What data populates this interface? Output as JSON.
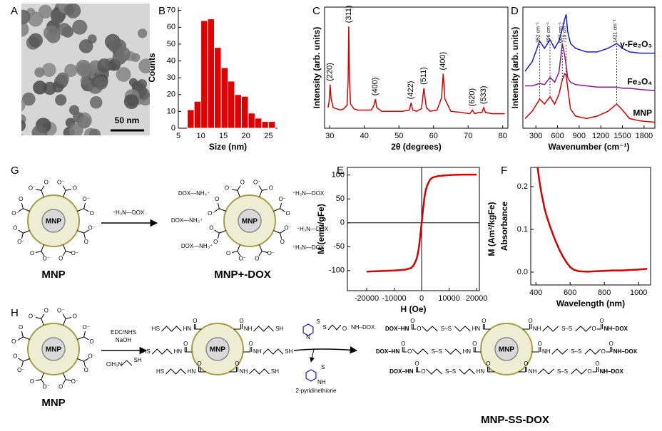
{
  "panel_labels": [
    "A",
    "B",
    "C",
    "D",
    "E",
    "F",
    "G",
    "H"
  ],
  "panel_a": {
    "scale_bar": "50 nm"
  },
  "chart_data": [
    {
      "type": "histogram",
      "xlabel": "Size (nm)",
      "ylabel": "Counts",
      "color": "#e00000",
      "bins": [
        7,
        8.5,
        10,
        11.5,
        13,
        14.5,
        16,
        17.5,
        19,
        20.5,
        22,
        23.5,
        25,
        26.5
      ],
      "values": [
        11,
        16,
        64,
        65,
        48,
        36,
        28,
        20,
        19,
        9,
        6,
        4,
        4
      ],
      "xlim": [
        5,
        27
      ],
      "ylim": [
        0,
        72
      ],
      "xticks": [
        5,
        10,
        15,
        20,
        25
      ],
      "yticks": [
        0,
        10,
        20,
        30,
        40,
        50,
        60,
        70
      ]
    },
    {
      "type": "line",
      "xlabel": "2θ (degrees)",
      "ylabel": "Intensity (arb. units)",
      "x": [
        29.5,
        29.8,
        30.1,
        30.4,
        31,
        32,
        33,
        34,
        35,
        35.3,
        35.5,
        35.7,
        36,
        37,
        38,
        40,
        42,
        42.8,
        43.2,
        43.6,
        45,
        48,
        51,
        53,
        53.5,
        54,
        55,
        56.5,
        57.2,
        57.9,
        59,
        61,
        62.3,
        62.8,
        63.3,
        65,
        68,
        70.5,
        71.2,
        71.9,
        73,
        74,
        74.5,
        75,
        77,
        80.5
      ],
      "series": [
        {
          "color": "#d40000",
          "values": [
            17,
            22,
            36,
            24,
            17,
            16,
            15,
            16,
            19,
            40,
            84,
            40,
            20,
            16,
            15,
            15,
            15,
            19,
            24,
            17,
            14,
            14,
            14,
            15,
            21,
            15,
            14,
            16,
            33,
            17,
            14,
            15,
            25,
            45,
            24,
            14,
            13,
            12,
            15,
            12,
            13,
            13,
            17,
            13,
            12,
            12
          ]
        }
      ],
      "peak_labels": [
        "(220)",
        "(311)",
        "(400)",
        "(422)",
        "(511)",
        "(400)",
        "(620)",
        "(533)"
      ],
      "peak_positions": [
        30.1,
        35.5,
        43.2,
        53.5,
        57.2,
        62.8,
        71.2,
        74.5
      ],
      "xlim": [
        28.5,
        81.5
      ],
      "ylim": [
        0,
        100
      ],
      "xticks": [
        30,
        40,
        50,
        60,
        70,
        80
      ]
    },
    {
      "type": "line",
      "xlabel": "Wavenumber (cm⁻¹)",
      "ylabel": "Intensity (arb. units)",
      "x": [
        150,
        250,
        352,
        420,
        496,
        560,
        620,
        667,
        700,
        719,
        740,
        780,
        850,
        1000,
        1150,
        1300,
        1421,
        1500,
        1600,
        1750,
        1950
      ],
      "series": [
        {
          "name": "γ-Fe₂O₃",
          "color": "#1a1ad0",
          "values": [
            47,
            55,
            72,
            66,
            73,
            66,
            72,
            82,
            90,
            94,
            80,
            70,
            66,
            63,
            63,
            66,
            70,
            66,
            63,
            62,
            62
          ]
        },
        {
          "name": "Fe₃O₄",
          "color": "#8a1a8a",
          "values": [
            35,
            35,
            37,
            36,
            42,
            38,
            46,
            70,
            60,
            52,
            42,
            38,
            36,
            35,
            34,
            34,
            34,
            33,
            33,
            32,
            31
          ]
        },
        {
          "name": "MNP",
          "color": "#d40000",
          "values": [
            8,
            14,
            24,
            20,
            26,
            20,
            28,
            40,
            45,
            44,
            34,
            16,
            10,
            8,
            10,
            14,
            20,
            15,
            8,
            6,
            5
          ]
        }
      ],
      "band_labels": [
        "352 cm⁻¹",
        "496 cm⁻¹",
        "667 cm⁻¹",
        "719 cm⁻¹",
        "1421 cm⁻¹"
      ],
      "band_positions": [
        352,
        496,
        667,
        719,
        1421
      ],
      "xlim": [
        120,
        1950
      ],
      "ylim": [
        0,
        100
      ],
      "xticks": [
        300,
        600,
        900,
        1200,
        1500,
        1800
      ]
    },
    {
      "type": "line",
      "xlabel": "H (Oe)",
      "ylabel": "M (emu/gFe)",
      "y2label": "M (Am²/kgFe)",
      "x": [
        -20000,
        -15000,
        -10000,
        -6000,
        -4000,
        -3000,
        -2000,
        -1500,
        -1000,
        -500,
        0,
        500,
        1000,
        1500,
        2000,
        3000,
        4000,
        6000,
        10000,
        15000,
        20000
      ],
      "series": [
        {
          "color": "#d40000",
          "values": [
            -102,
            -101,
            -100,
            -98,
            -95,
            -90,
            -78,
            -68,
            -52,
            -28,
            0,
            28,
            52,
            68,
            78,
            90,
            95,
            98,
            100,
            101,
            101
          ]
        }
      ],
      "xlim": [
        -27000,
        21000
      ],
      "ylim": [
        -142,
        116
      ],
      "xticks": [
        -20000,
        -10000,
        0,
        10000,
        20000
      ],
      "yticks": [
        -100,
        -50,
        0,
        50,
        100
      ]
    },
    {
      "type": "line",
      "xlabel": "Wavelength (nm)",
      "ylabel": "Absorbance",
      "x": [
        410,
        420,
        430,
        440,
        450,
        460,
        480,
        500,
        520,
        540,
        560,
        580,
        600,
        620,
        650,
        700,
        750,
        800,
        850,
        900,
        950,
        1000,
        1050
      ],
      "series": [
        {
          "color": "#d40000",
          "values": [
            0.245,
            0.215,
            0.19,
            0.17,
            0.15,
            0.135,
            0.11,
            0.088,
            0.068,
            0.05,
            0.035,
            0.022,
            0.012,
            0.006,
            0.002,
            0.001,
            0.002,
            0.003,
            0.004,
            0.004,
            0.005,
            0.006,
            0.008
          ]
        }
      ],
      "xlim": [
        370,
        1070
      ],
      "ylim": [
        -0.03,
        0.245
      ],
      "xticks": [
        400,
        600,
        800,
        1000
      ],
      "yticks": [
        {
          "value": 0,
          "label": "0.0"
        },
        0.1,
        0.2
      ]
    }
  ],
  "panel_g": {
    "core": "MNP",
    "carboxylate_o": "O",
    "carboxylate_o_minus": "O⁻",
    "reagent": "⁺H₃N—DOX",
    "ammonium_left": "DOX—NH₃⁺",
    "ammonium_right": "⁺H₃N—DOX",
    "label_start": "MNP",
    "label_product": "MNP+-DOX"
  },
  "panel_h": {
    "core": "MNP",
    "reagent_1": "EDC/NHS",
    "reagent_2": "NaOH",
    "amine": "ClH₃N",
    "thiol": "SH",
    "hs": "HS",
    "hn": "HN",
    "nh": "NH",
    "o": "O",
    "s": "S",
    "ss": "S–S",
    "n": "N",
    "nh_dox": "NH–DOX",
    "dox_hn": "DOX–HN",
    "byproduct": "2-pyridinethione",
    "label_start": "MNP",
    "label_product": "MNP-SS-DOX"
  }
}
